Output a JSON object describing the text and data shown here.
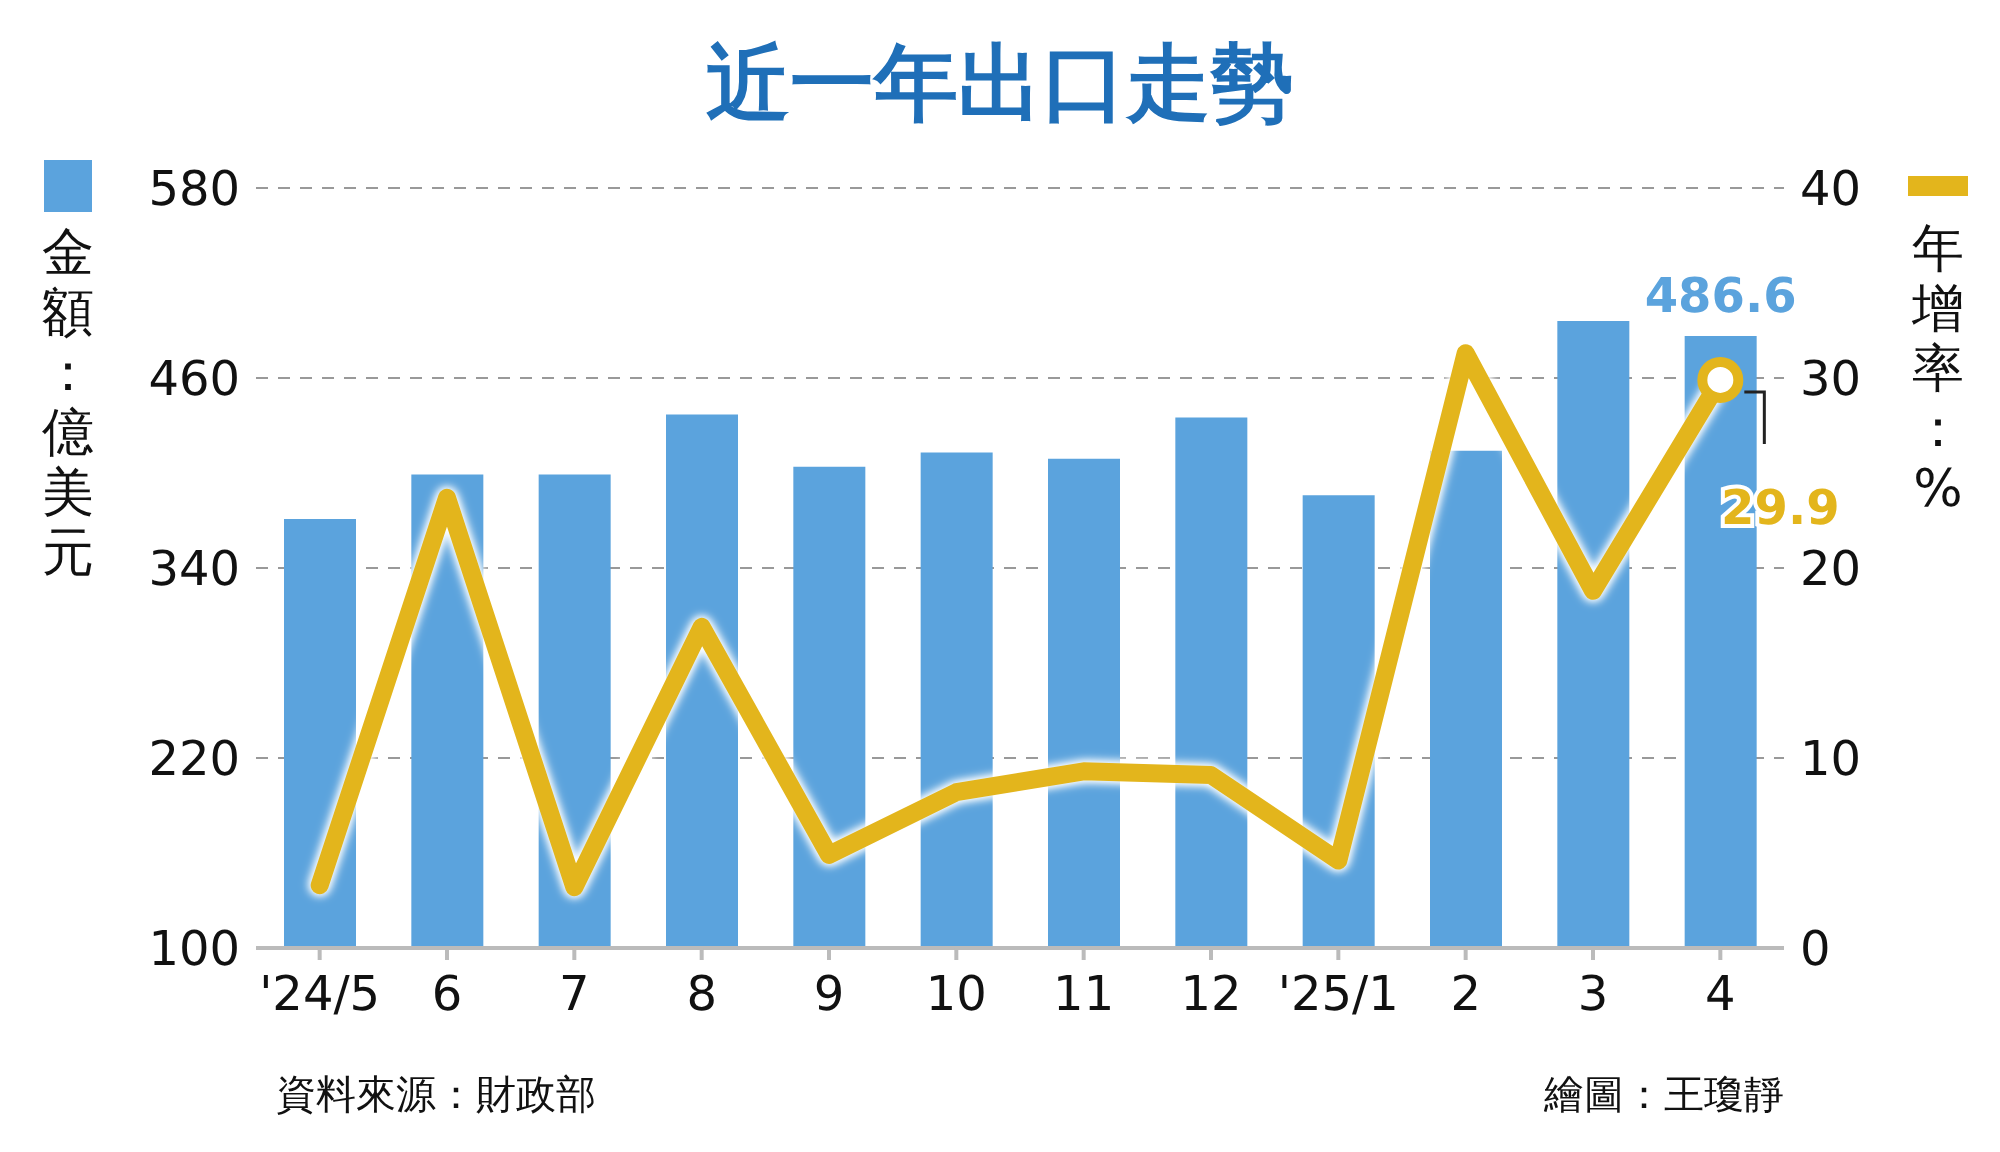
{
  "chart_data": {
    "type": "bar",
    "title": "近一年出口走勢",
    "ylabel": "金額：億美元",
    "y2label": "年增率：%",
    "categories": [
      "'24/5",
      "6",
      "7",
      "8",
      "9",
      "10",
      "11",
      "12",
      "'25/1",
      "2",
      "3",
      "4"
    ],
    "series": [
      {
        "color": "#5ba3dd",
        "values": [
          371,
          399,
          399,
          437,
          404,
          413,
          409,
          435,
          386,
          414,
          496,
          486.6
        ],
        "value_labels": [
          null,
          null,
          null,
          null,
          null,
          null,
          null,
          null,
          null,
          null,
          null,
          "486.6"
        ]
      },
      {
        "type": "line",
        "axis": "y2",
        "color": "#e3b51c",
        "values": [
          3.3,
          23.7,
          3.2,
          16.9,
          4.9,
          8.2,
          9.3,
          9.1,
          4.6,
          31.3,
          18.8,
          29.9
        ],
        "value_labels": [
          null,
          null,
          null,
          null,
          null,
          null,
          null,
          null,
          null,
          null,
          null,
          "29.9"
        ]
      }
    ],
    "ylim": [
      100,
      580
    ],
    "yticks": [
      100,
      220,
      340,
      460,
      580
    ],
    "y2lim": [
      0,
      40
    ],
    "y2ticks": [
      0,
      10,
      20,
      30,
      40
    ],
    "grid": "y",
    "annotations": [
      "資料來源：財政部",
      "繪圖：王瓊靜"
    ]
  }
}
